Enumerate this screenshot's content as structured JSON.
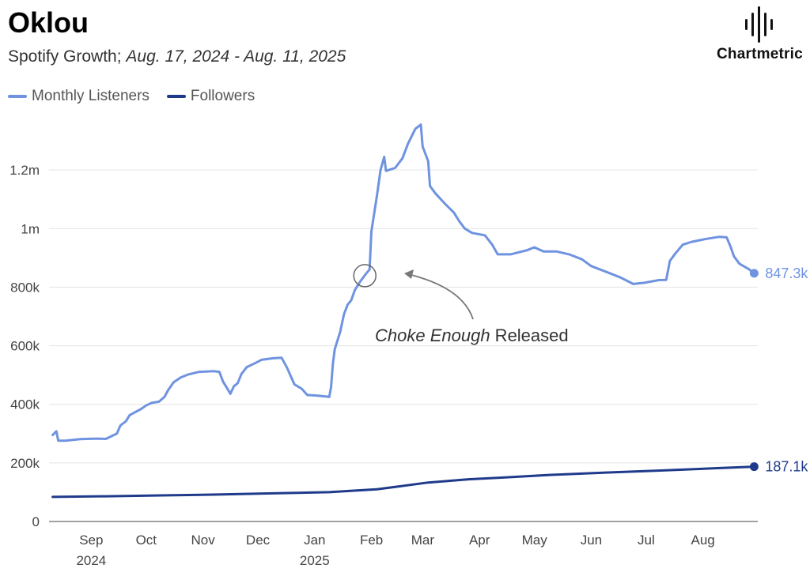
{
  "header": {
    "title": "Oklou",
    "subtitle_prefix": "Spotify Growth;",
    "subtitle_range": "Aug. 17, 2024 - Aug. 11, 2025"
  },
  "brand": {
    "name": "Chartmetric",
    "icon": "sound-wave-icon"
  },
  "legend": [
    {
      "label": "Monthly Listeners",
      "color": "#6f93e0"
    },
    {
      "label": "Followers",
      "color": "#1f3a8a"
    }
  ],
  "annotation": {
    "italic": "Choke Enough",
    "text": "Released"
  },
  "chart_data": {
    "type": "line",
    "ylim": [
      0,
      1400000
    ],
    "yticks": [
      {
        "v": 0,
        "label": "0"
      },
      {
        "v": 200000,
        "label": "200k"
      },
      {
        "v": 400000,
        "label": "400k"
      },
      {
        "v": 600000,
        "label": "600k"
      },
      {
        "v": 800000,
        "label": "800k"
      },
      {
        "v": 1000000,
        "label": "1m"
      },
      {
        "v": 1200000,
        "label": "1.2m"
      }
    ],
    "xticks": [
      {
        "date": "2024-09-01",
        "label": "Sep",
        "sub": "2024"
      },
      {
        "date": "2024-10-01",
        "label": "Oct",
        "sub": ""
      },
      {
        "date": "2024-11-01",
        "label": "Nov",
        "sub": ""
      },
      {
        "date": "2024-12-01",
        "label": "Dec",
        "sub": ""
      },
      {
        "date": "2025-01-01",
        "label": "Jan",
        "sub": "2025"
      },
      {
        "date": "2025-02-01",
        "label": "Feb",
        "sub": ""
      },
      {
        "date": "2025-03-01",
        "label": "Mar",
        "sub": ""
      },
      {
        "date": "2025-04-01",
        "label": "Apr",
        "sub": ""
      },
      {
        "date": "2025-05-01",
        "label": "May",
        "sub": ""
      },
      {
        "date": "2025-06-01",
        "label": "Jun",
        "sub": ""
      },
      {
        "date": "2025-07-01",
        "label": "Jul",
        "sub": ""
      },
      {
        "date": "2025-08-01",
        "label": "Aug",
        "sub": ""
      }
    ],
    "grid": true,
    "legend_position": "top-left",
    "annotation_date": "2025-02-01",
    "annotation_value": 850000,
    "series": [
      {
        "name": "Monthly Listeners",
        "color": "#6f93e0",
        "end_label": "847.3k",
        "points": [
          [
            "2024-08-17",
            295000
          ],
          [
            "2024-08-19",
            308000
          ],
          [
            "2024-08-20",
            276000
          ],
          [
            "2024-08-24",
            276000
          ],
          [
            "2024-09-01",
            281000
          ],
          [
            "2024-09-10",
            283000
          ],
          [
            "2024-09-15",
            282000
          ],
          [
            "2024-09-18",
            291000
          ],
          [
            "2024-09-21",
            300000
          ],
          [
            "2024-09-23",
            328000
          ],
          [
            "2024-09-26",
            342000
          ],
          [
            "2024-09-28",
            363000
          ],
          [
            "2024-10-01",
            373000
          ],
          [
            "2024-10-04",
            383000
          ],
          [
            "2024-10-07",
            396000
          ],
          [
            "2024-10-10",
            405000
          ],
          [
            "2024-10-14",
            409000
          ],
          [
            "2024-10-17",
            425000
          ],
          [
            "2024-10-19",
            448000
          ],
          [
            "2024-10-22",
            475000
          ],
          [
            "2024-10-26",
            492000
          ],
          [
            "2024-10-30",
            502000
          ],
          [
            "2024-11-05",
            511000
          ],
          [
            "2024-11-13",
            513000
          ],
          [
            "2024-11-16",
            511000
          ],
          [
            "2024-11-18",
            478000
          ],
          [
            "2024-11-21",
            447000
          ],
          [
            "2024-11-22",
            436000
          ],
          [
            "2024-11-24",
            462000
          ],
          [
            "2024-11-26",
            472000
          ],
          [
            "2024-11-28",
            503000
          ],
          [
            "2024-12-01",
            527000
          ],
          [
            "2024-12-05",
            539000
          ],
          [
            "2024-12-09",
            552000
          ],
          [
            "2024-12-15",
            557000
          ],
          [
            "2024-12-20",
            559000
          ],
          [
            "2024-12-23",
            524000
          ],
          [
            "2024-12-27",
            468000
          ],
          [
            "2024-12-31",
            453000
          ],
          [
            "2025-01-03",
            432000
          ],
          [
            "2025-01-08",
            430000
          ],
          [
            "2025-01-13",
            427000
          ],
          [
            "2025-01-15",
            425000
          ],
          [
            "2025-01-16",
            458000
          ],
          [
            "2025-01-17",
            540000
          ],
          [
            "2025-01-18",
            588000
          ],
          [
            "2025-01-20",
            628000
          ],
          [
            "2025-01-21",
            648000
          ],
          [
            "2025-01-23",
            707000
          ],
          [
            "2025-01-25",
            740000
          ],
          [
            "2025-01-27",
            755000
          ],
          [
            "2025-01-29",
            790000
          ],
          [
            "2025-02-01",
            820000
          ],
          [
            "2025-02-04",
            845000
          ],
          [
            "2025-02-06",
            860000
          ],
          [
            "2025-02-07",
            990000
          ],
          [
            "2025-02-10",
            1110000
          ],
          [
            "2025-02-12",
            1200000
          ],
          [
            "2025-02-14",
            1245000
          ],
          [
            "2025-02-15",
            1197000
          ],
          [
            "2025-02-20",
            1207000
          ],
          [
            "2025-02-24",
            1240000
          ],
          [
            "2025-02-27",
            1290000
          ],
          [
            "2025-03-03",
            1340000
          ],
          [
            "2025-03-06",
            1355000
          ],
          [
            "2025-03-07",
            1280000
          ],
          [
            "2025-03-10",
            1230000
          ],
          [
            "2025-03-11",
            1145000
          ],
          [
            "2025-03-14",
            1120000
          ],
          [
            "2025-03-19",
            1086000
          ],
          [
            "2025-03-24",
            1055000
          ],
          [
            "2025-03-27",
            1025000
          ],
          [
            "2025-03-30",
            1000000
          ],
          [
            "2025-04-03",
            985000
          ],
          [
            "2025-04-10",
            977000
          ],
          [
            "2025-04-14",
            945000
          ],
          [
            "2025-04-17",
            912000
          ],
          [
            "2025-04-24",
            912000
          ],
          [
            "2025-05-03",
            926000
          ],
          [
            "2025-05-07",
            936000
          ],
          [
            "2025-05-12",
            922000
          ],
          [
            "2025-05-19",
            922000
          ],
          [
            "2025-05-26",
            912000
          ],
          [
            "2025-06-02",
            895000
          ],
          [
            "2025-06-07",
            872000
          ],
          [
            "2025-06-15",
            853000
          ],
          [
            "2025-06-23",
            833000
          ],
          [
            "2025-06-30",
            811000
          ],
          [
            "2025-07-06",
            815000
          ],
          [
            "2025-07-14",
            824000
          ],
          [
            "2025-07-18",
            825000
          ],
          [
            "2025-07-20",
            890000
          ],
          [
            "2025-07-23",
            915000
          ],
          [
            "2025-07-27",
            945000
          ],
          [
            "2025-08-01",
            955000
          ],
          [
            "2025-08-09",
            965000
          ],
          [
            "2025-08-16",
            972000
          ],
          [
            "2025-08-20",
            970000
          ],
          [
            "2025-08-22",
            940000
          ],
          [
            "2025-08-24",
            905000
          ],
          [
            "2025-08-27",
            880000
          ],
          [
            "2025-09-01",
            862000
          ],
          [
            "2025-09-04",
            847300
          ]
        ]
      },
      {
        "name": "Followers",
        "color": "#1f3a8a",
        "end_label": "187.1k",
        "points": [
          [
            "2024-08-17",
            84000
          ],
          [
            "2024-09-15",
            86000
          ],
          [
            "2024-10-15",
            89000
          ],
          [
            "2024-11-15",
            92000
          ],
          [
            "2024-12-15",
            96000
          ],
          [
            "2025-01-15",
            100000
          ],
          [
            "2025-02-10",
            110000
          ],
          [
            "2025-02-20",
            118000
          ],
          [
            "2025-03-10",
            133000
          ],
          [
            "2025-04-01",
            144000
          ],
          [
            "2025-04-20",
            150000
          ],
          [
            "2025-05-15",
            159000
          ],
          [
            "2025-06-15",
            167000
          ],
          [
            "2025-07-15",
            174000
          ],
          [
            "2025-08-15",
            182000
          ],
          [
            "2025-09-04",
            187100
          ]
        ]
      }
    ]
  }
}
